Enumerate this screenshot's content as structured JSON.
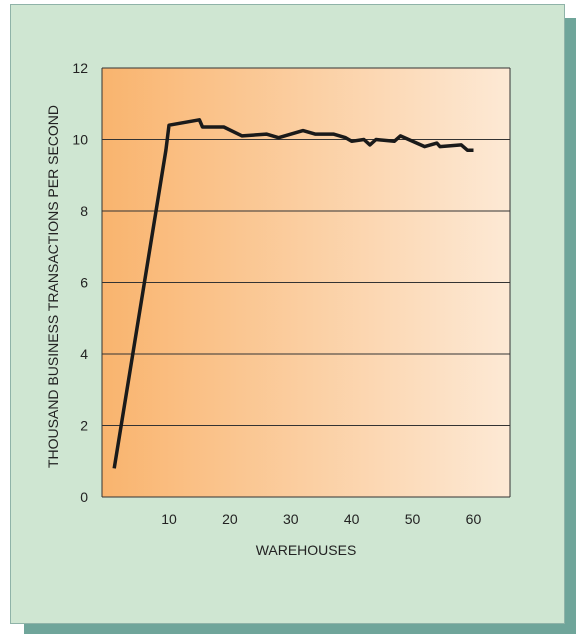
{
  "chart_data": {
    "type": "line",
    "title": "",
    "xlabel": "WAREHOUSES",
    "ylabel": "THOUSAND BUSINESS TRANSACTIONS PER SECOND",
    "xlim": [
      -1,
      66
    ],
    "ylim": [
      0,
      12
    ],
    "xticks": [
      10,
      20,
      30,
      40,
      50,
      60
    ],
    "yticks": [
      0,
      2,
      4,
      6,
      8,
      10,
      12
    ],
    "grid": "horizontal",
    "series": [
      {
        "x": [
          1,
          9.5,
          10,
          15,
          15.5,
          19,
          22,
          26,
          28,
          32,
          34,
          37,
          39,
          40,
          42,
          43,
          44,
          47,
          48,
          52,
          54,
          54.5,
          58,
          59,
          60
        ],
        "values": [
          0.8,
          9.7,
          10.4,
          10.55,
          10.35,
          10.35,
          10.1,
          10.15,
          10.05,
          10.25,
          10.15,
          10.15,
          10.05,
          9.95,
          10.0,
          9.85,
          10.0,
          9.95,
          10.1,
          9.8,
          9.9,
          9.8,
          9.85,
          9.7,
          9.7
        ]
      }
    ]
  },
  "colors": {
    "plot_gradient_start": "#f9b46e",
    "plot_gradient_end": "#fde9d5",
    "card_background": "#cfe6d2",
    "card_shadow": "#6fa59a",
    "line": "#1a1a1a",
    "grid": "#333333"
  }
}
